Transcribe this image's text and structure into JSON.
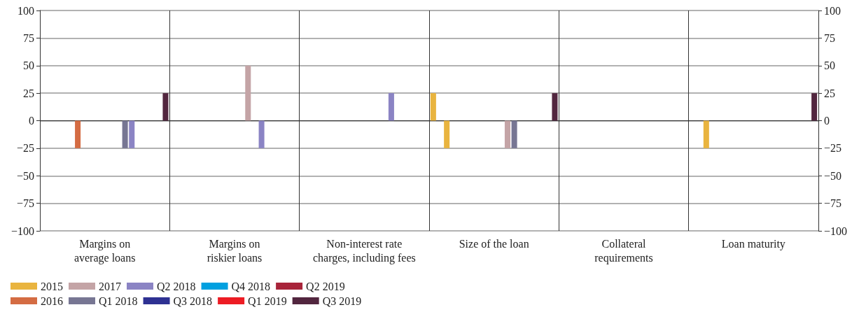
{
  "chart_data": {
    "type": "bar",
    "categories": [
      "Margins on\naverage loans",
      "Margins on\nriskier loans",
      "Non-interest rate\ncharges, including fees",
      "Size of the loan",
      "Collateral\nrequirements",
      "Loan maturity"
    ],
    "series": [
      {
        "name": "2015",
        "color": "#e9b43f",
        "values": [
          0,
          0,
          0,
          25,
          0,
          0
        ]
      },
      {
        "color": "#e9b43f",
        "values": [
          0,
          0,
          0,
          0,
          0,
          0
        ]
      },
      {
        "color": "#e9b43f",
        "values": [
          0,
          0,
          0,
          -25,
          0,
          -25
        ]
      },
      {
        "color": "#e9b43f",
        "values": [
          0,
          0,
          0,
          0,
          0,
          0
        ]
      },
      {
        "name": "2016",
        "color": "#d46c43",
        "values": [
          0,
          0,
          0,
          0,
          0,
          0
        ]
      },
      {
        "color": "#d46c43",
        "values": [
          -25,
          0,
          0,
          0,
          0,
          0
        ]
      },
      {
        "color": "#d46c43",
        "values": [
          0,
          0,
          0,
          0,
          0,
          0
        ]
      },
      {
        "color": "#d46c43",
        "values": [
          0,
          0,
          0,
          0,
          0,
          0
        ]
      },
      {
        "name": "2017",
        "color": "#c4a4a6",
        "values": [
          0,
          0,
          0,
          0,
          0,
          0
        ]
      },
      {
        "color": "#c4a4a6",
        "values": [
          0,
          0,
          0,
          0,
          0,
          0
        ]
      },
      {
        "color": "#c4a4a6",
        "values": [
          0,
          0,
          0,
          0,
          0,
          0
        ]
      },
      {
        "color": "#c4a4a6",
        "values": [
          0,
          50,
          0,
          -25,
          0,
          0
        ]
      },
      {
        "name": "Q1 2018",
        "color": "#777693",
        "values": [
          -25,
          0,
          0,
          -25,
          0,
          0
        ]
      },
      {
        "name": "Q2 2018",
        "color": "#8b84c4",
        "values": [
          -25,
          -25,
          25,
          0,
          0,
          0
        ]
      },
      {
        "name": "Q3 2018",
        "color": "#2e3192",
        "values": [
          0,
          0,
          0,
          0,
          0,
          0
        ]
      },
      {
        "name": "Q4 2018",
        "color": "#00a0e0",
        "values": [
          0,
          0,
          0,
          0,
          0,
          0
        ]
      },
      {
        "name": "Q1 2019",
        "color": "#ed1c24",
        "values": [
          0,
          0,
          0,
          0,
          0,
          0
        ]
      },
      {
        "name": "Q2 2019",
        "color": "#a8243a",
        "values": [
          0,
          0,
          0,
          0,
          0,
          0
        ]
      },
      {
        "name": "Q3 2019",
        "color": "#52263f",
        "values": [
          25,
          0,
          0,
          25,
          0,
          25
        ]
      }
    ],
    "ylim": [
      -100,
      100
    ],
    "yticks": [
      {
        "value": -100,
        "label": "−100"
      },
      {
        "value": -75,
        "label": "−75"
      },
      {
        "value": -50,
        "label": "−50"
      },
      {
        "value": -25,
        "label": "−25"
      },
      0,
      25,
      50,
      75,
      100
    ],
    "y2lim": [
      -100,
      100
    ],
    "y2ticks": [
      {
        "value": -100,
        "label": "−100"
      },
      {
        "value": -75,
        "label": "−75"
      },
      {
        "value": -50,
        "label": "−50"
      },
      {
        "value": -25,
        "label": "−25"
      },
      0,
      25,
      50,
      75,
      100
    ],
    "grid": true,
    "legend": "bottom"
  }
}
